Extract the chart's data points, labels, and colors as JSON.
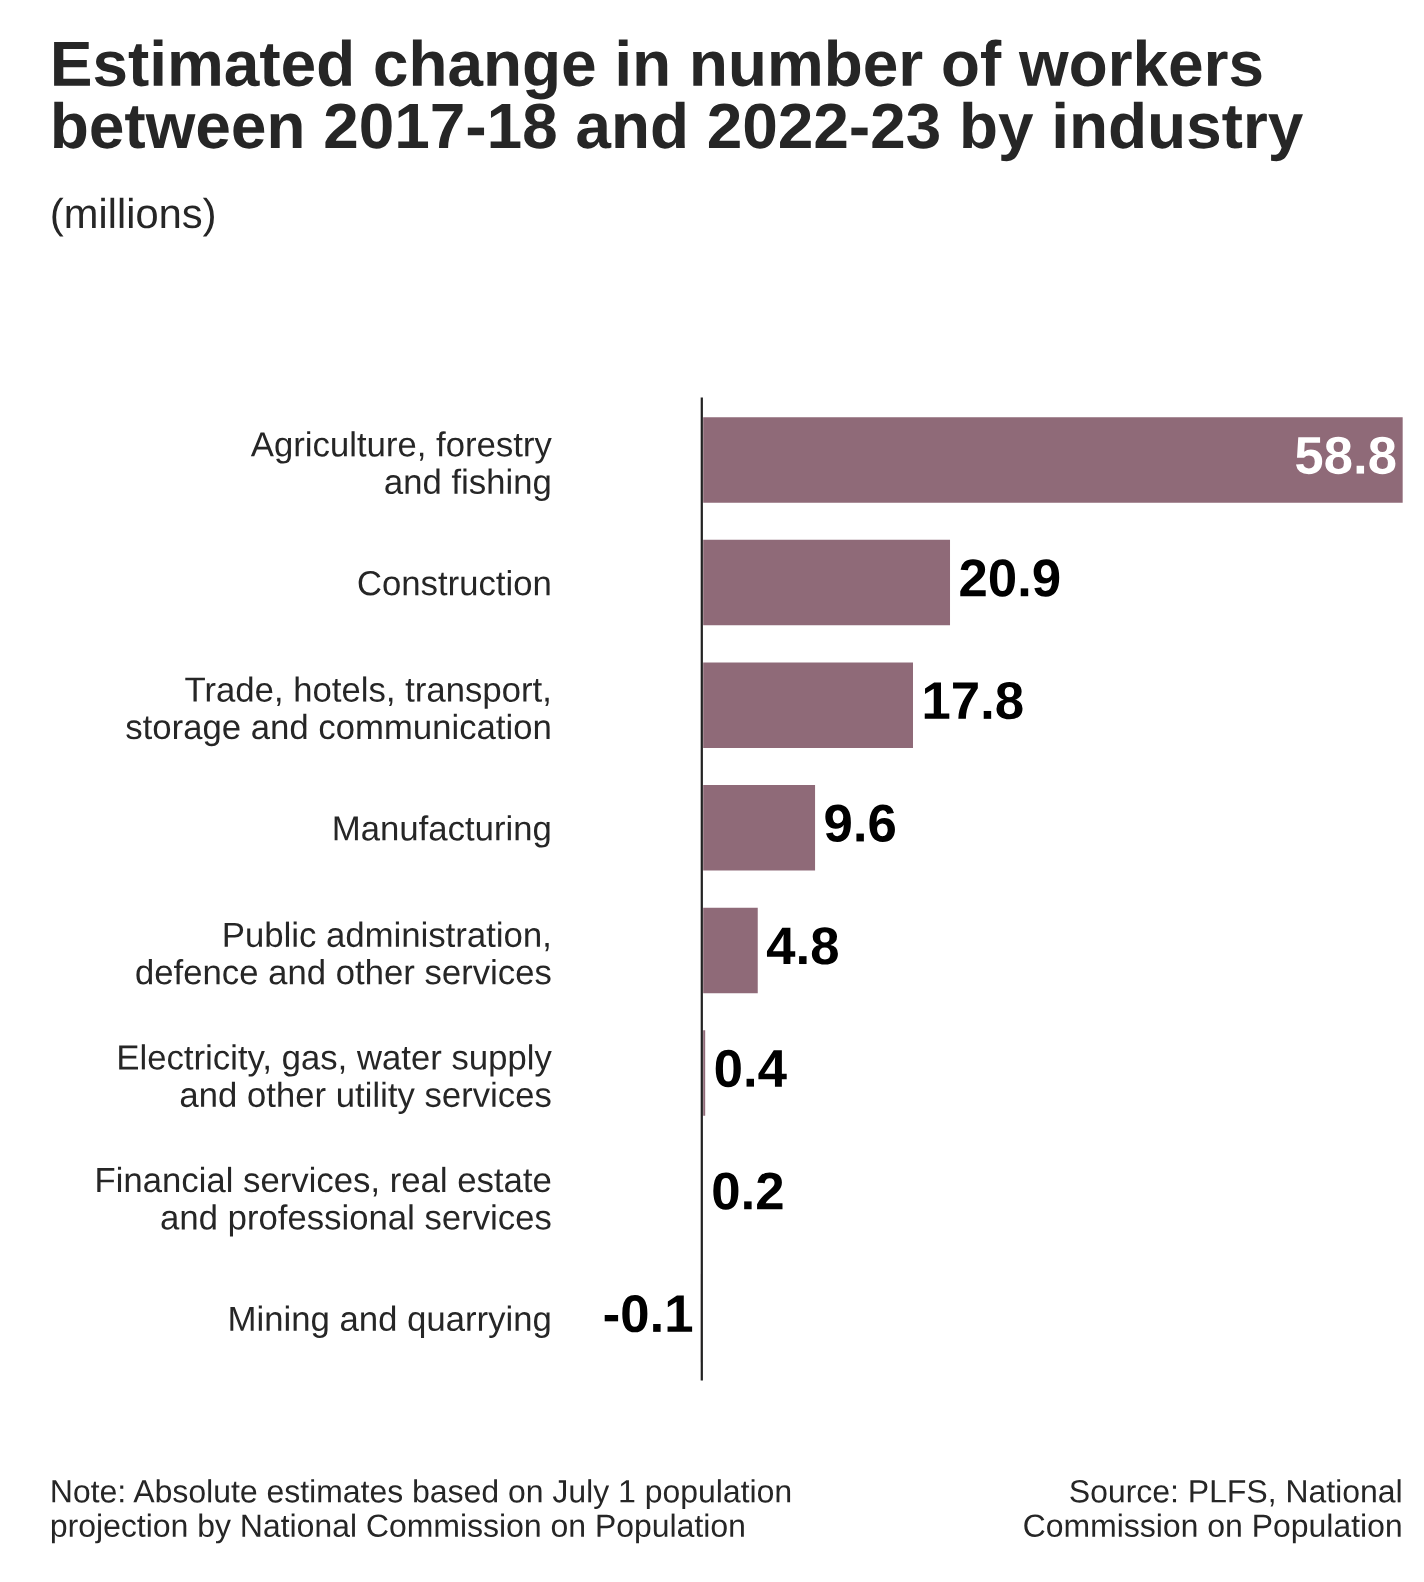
{
  "chart_data": {
    "type": "bar",
    "orientation": "horizontal",
    "title": "Estimated change in number of workers between 2017-18 and 2022-23 by industry",
    "subtitle": "(millions)",
    "categories": [
      "Agriculture, forestry\nand fishing",
      "Construction",
      "Trade, hotels, transport,\nstorage and communication",
      "Manufacturing",
      "Public administration,\ndefence and other services",
      "Electricity, gas, water supply\nand other utility services",
      "Financial services, real estate\nand professional services",
      "Mining and quarrying"
    ],
    "values": [
      58.8,
      20.9,
      17.8,
      9.6,
      4.8,
      0.4,
      0.2,
      -0.1
    ],
    "color": "#8f6a78",
    "data_labels": true,
    "grid": false,
    "legend": false,
    "annotations": [
      "Note: Absolute estimates based on July 1 population\nprojection by National Commission on Population",
      "Source: PLFS, National\nCommission on Population"
    ]
  }
}
